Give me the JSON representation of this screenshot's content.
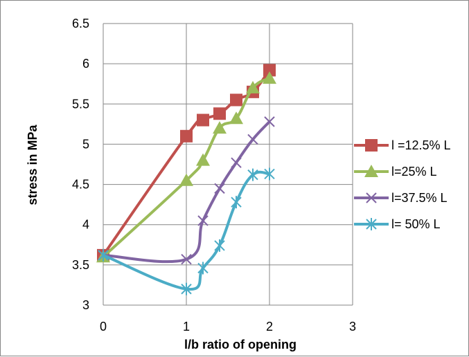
{
  "chart_data": {
    "type": "line",
    "title": "",
    "xlabel": "l/b ratio of opening",
    "ylabel": "stress in MPa",
    "xlim": [
      0,
      3
    ],
    "ylim": [
      3,
      6.5
    ],
    "xticks": [
      0,
      1,
      2,
      3
    ],
    "yticks": [
      3,
      3.5,
      4,
      4.5,
      5,
      5.5,
      6,
      6.5
    ],
    "grid": "vertical",
    "legend": "right",
    "series": [
      {
        "name": "l =12.5% L",
        "color": "#C0504D",
        "marker": "square",
        "x": [
          0,
          1,
          1.2,
          1.4,
          1.6,
          1.8,
          2
        ],
        "y": [
          3.62,
          5.1,
          5.3,
          5.38,
          5.55,
          5.65,
          5.92
        ]
      },
      {
        "name": "l=25% L",
        "color": "#9BBB59",
        "marker": "triangle",
        "x": [
          0,
          1,
          1.2,
          1.4,
          1.6,
          1.8,
          2
        ],
        "y": [
          3.6,
          4.55,
          4.8,
          5.2,
          5.32,
          5.7,
          5.82
        ]
      },
      {
        "name": "l=37.5% L",
        "color": "#8064A2",
        "marker": "x",
        "x": [
          0,
          1,
          1.2,
          1.4,
          1.6,
          1.8,
          2
        ],
        "y": [
          3.62,
          3.57,
          4.05,
          4.45,
          4.77,
          5.06,
          5.28
        ]
      },
      {
        "name": "l= 50% L",
        "color": "#4BACC6",
        "marker": "star",
        "x": [
          0,
          1,
          1.2,
          1.4,
          1.6,
          1.8,
          2
        ],
        "y": [
          3.62,
          3.2,
          3.46,
          3.74,
          4.28,
          4.62,
          4.63
        ]
      }
    ]
  }
}
